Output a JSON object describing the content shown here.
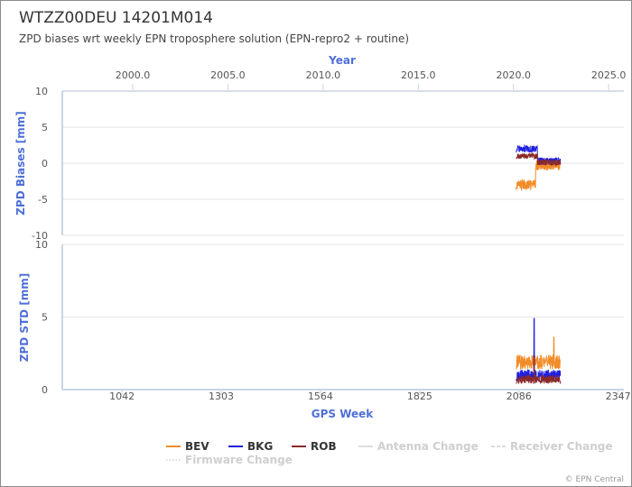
{
  "chart_data": [
    {
      "type": "line",
      "title": "WTZZ00DEU 14201M014",
      "subtitle": "ZPD biases wrt weekly EPN troposphere solution (EPN-repro2 + routine)",
      "top_axis": {
        "title": "Year",
        "ticks": [
          "2000.0",
          "2005.0",
          "2010.0",
          "2015.0",
          "2020.0",
          "2025.0"
        ],
        "range": [
          1996.3,
          2025.8
        ]
      },
      "ylabel": "ZPD Biases [mm]",
      "ylim": [
        -10,
        10
      ],
      "yticks": [
        "10",
        "5",
        "0",
        "-5",
        "-10"
      ],
      "grid": true,
      "series": [
        {
          "name": "BEV",
          "color": "#f28c28",
          "x_range": [
            2079,
            2195
          ],
          "level": -3.0,
          "level_after": -0.3,
          "step_week": 2130,
          "noise": 0.7
        },
        {
          "name": "BKG",
          "color": "#1f1fdd",
          "x_range": [
            2079,
            2195
          ],
          "level": 2.0,
          "level_after": 0.3,
          "step_week": 2135,
          "noise": 0.5
        },
        {
          "name": "ROB",
          "color": "#8b2a2a",
          "x_range": [
            2079,
            2195
          ],
          "level": 1.0,
          "level_after": 0.1,
          "step_week": 2135,
          "noise": 0.4
        }
      ]
    },
    {
      "type": "line",
      "xlabel": "GPS Week",
      "xticks": [
        "1042",
        "1303",
        "1564",
        "1825",
        "2086",
        "2347"
      ],
      "xlim": [
        885,
        2362
      ],
      "ylabel": "ZPD STD [mm]",
      "ylim": [
        0,
        10
      ],
      "yticks": [
        "10",
        "5",
        "0"
      ],
      "grid": true,
      "series": [
        {
          "name": "BEV",
          "color": "#f28c28",
          "x_range": [
            2079,
            2195
          ],
          "level": 1.9,
          "noise": 0.5,
          "spike_week": 2178,
          "spike_value": 3.6
        },
        {
          "name": "BKG",
          "color": "#1f1fdd",
          "x_range": [
            2079,
            2195
          ],
          "level": 1.0,
          "noise": 0.4,
          "spike_week": 2126,
          "spike_value": 4.9
        },
        {
          "name": "ROB",
          "color": "#8b2a2a",
          "x_range": [
            2079,
            2195
          ],
          "level": 0.7,
          "noise": 0.3,
          "spike_week": 2126,
          "spike_value": 2.2
        }
      ]
    }
  ],
  "legend": {
    "placement": "bottom",
    "items": [
      {
        "label": "BEV",
        "color": "#f28c28",
        "style": "solid",
        "active": true
      },
      {
        "label": "BKG",
        "color": "#1f1fdd",
        "style": "solid",
        "active": true
      },
      {
        "label": "ROB",
        "color": "#8b2a2a",
        "style": "solid",
        "active": true
      },
      {
        "label": "Antenna Change",
        "color": "#cccccc",
        "style": "solid",
        "active": false
      },
      {
        "label": "Receiver Change",
        "color": "#cccccc",
        "style": "dashed",
        "active": false
      },
      {
        "label": "Firmware Change",
        "color": "#cccccc",
        "style": "dotted",
        "active": false
      }
    ]
  },
  "credits": "© EPN Central"
}
